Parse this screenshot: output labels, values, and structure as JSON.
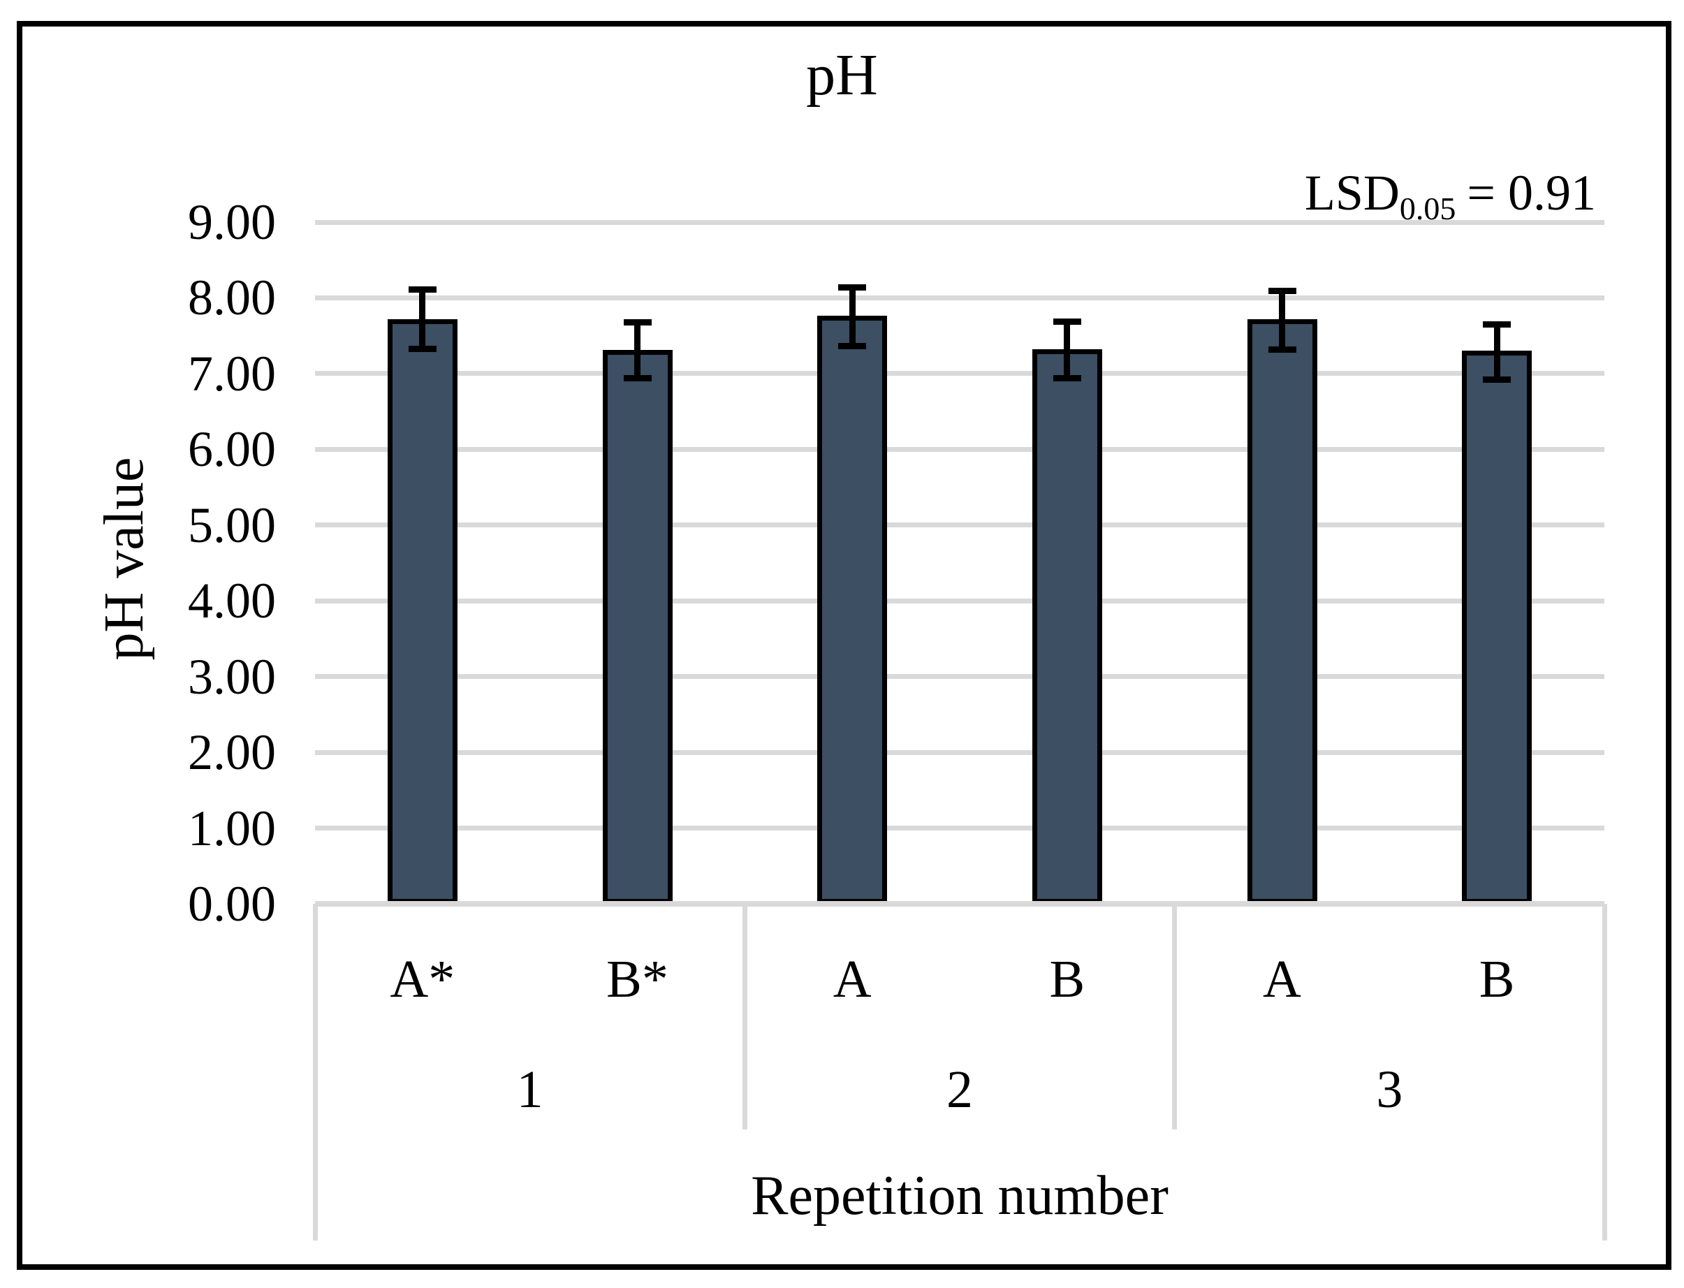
{
  "chart_data": {
    "type": "bar",
    "title": "pH",
    "ylabel": "pH value",
    "xlabel": "Repetition number",
    "annotation": {
      "prefix": "LSD",
      "subscript": "0.05",
      "rest": "= 0.91"
    },
    "ylim": [
      0,
      9
    ],
    "ytick_labels": [
      "9.00",
      "8.00",
      "7.00",
      "6.00",
      "5.00",
      "4.00",
      "3.00",
      "2.00",
      "1.00",
      "0.00"
    ],
    "grid": true,
    "legend": false,
    "colors": {
      "bar_fill": "#3C4F63",
      "bar_border": "#000000",
      "gridline": "#D9D9D9",
      "error_bar": "#000000",
      "frame_border": "#000000",
      "text": "#000000"
    },
    "groups": [
      {
        "label": "1",
        "bars": [
          {
            "label": "A*",
            "value": 7.72,
            "error_plus": 0.39,
            "error_minus": 0.39
          },
          {
            "label": "B*",
            "value": 7.31,
            "error_plus": 0.37,
            "error_minus": 0.37
          }
        ]
      },
      {
        "label": "2",
        "bars": [
          {
            "label": "A",
            "value": 7.76,
            "error_plus": 0.38,
            "error_minus": 0.4
          },
          {
            "label": "B",
            "value": 7.32,
            "error_plus": 0.37,
            "error_minus": 0.38
          }
        ]
      },
      {
        "label": "3",
        "bars": [
          {
            "label": "A",
            "value": 7.72,
            "error_plus": 0.37,
            "error_minus": 0.4
          },
          {
            "label": "B",
            "value": 7.3,
            "error_plus": 0.35,
            "error_minus": 0.38
          }
        ]
      }
    ]
  }
}
